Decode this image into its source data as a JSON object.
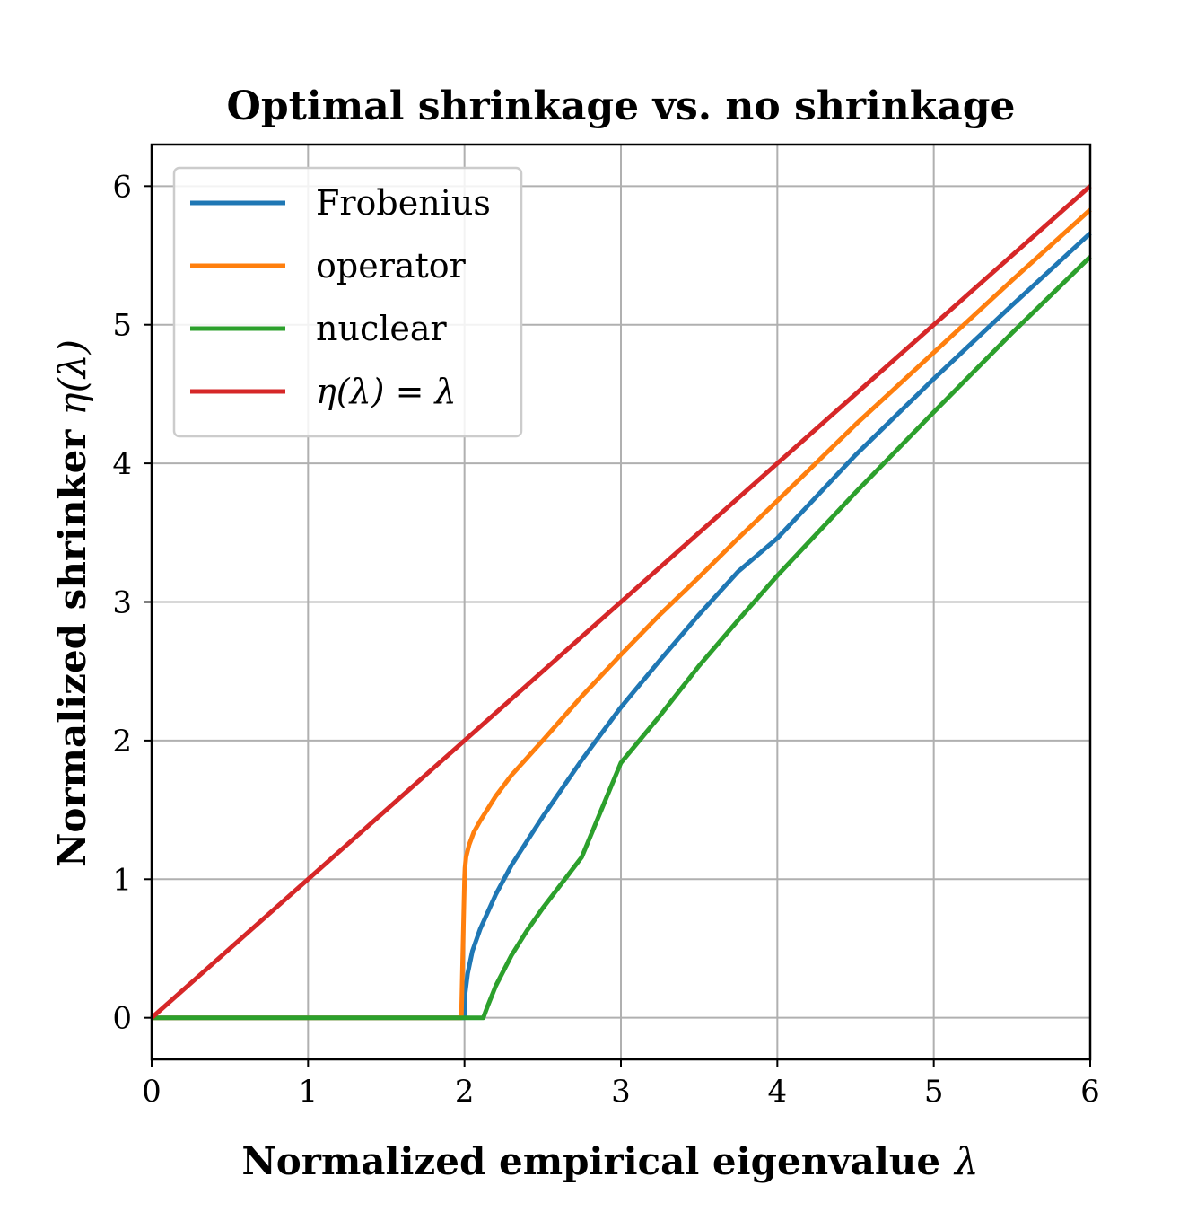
{
  "chart_data": {
    "type": "line",
    "title": "Optimal shrinkage vs. no shrinkage",
    "xlabel": "Normalized empirical eigenvalue",
    "xlabel_symbol": "λ",
    "ylabel": "Normalized shrinker",
    "ylabel_symbol": "η(λ)",
    "xlim": [
      0,
      6
    ],
    "ylim": [
      -0.3,
      6.3
    ],
    "xticks": [
      "0",
      "1",
      "2",
      "3",
      "4",
      "5",
      "6"
    ],
    "yticks": [
      "0",
      "1",
      "2",
      "3",
      "4",
      "5",
      "6"
    ],
    "grid": true,
    "legend_position": "top-left",
    "series": [
      {
        "name": "Frobenius",
        "color": "#1f77b4",
        "x": [
          0,
          2.0,
          2.0,
          2.005,
          2.02,
          2.05,
          2.1,
          2.2,
          2.3,
          2.5,
          2.75,
          3.0,
          3.25,
          3.5,
          3.75,
          4.0,
          4.5,
          5.0,
          5.5,
          6.0
        ],
        "y": [
          0,
          0,
          0.0,
          0.18,
          0.32,
          0.48,
          0.64,
          0.89,
          1.1,
          1.45,
          1.86,
          2.24,
          2.58,
          2.91,
          3.22,
          3.46,
          4.06,
          4.61,
          5.14,
          5.66
        ]
      },
      {
        "name": "operator",
        "color": "#ff7f0e",
        "x": [
          0,
          1.98,
          1.99,
          2.0,
          2.003,
          2.01,
          2.03,
          2.06,
          2.1,
          2.2,
          2.3,
          2.5,
          2.75,
          3.0,
          3.25,
          3.5,
          3.75,
          4.0,
          4.5,
          5.0,
          5.5,
          6.0
        ],
        "y": [
          0,
          0,
          0.5,
          1.0,
          1.08,
          1.16,
          1.25,
          1.34,
          1.42,
          1.6,
          1.75,
          2.0,
          2.32,
          2.62,
          2.91,
          3.18,
          3.46,
          3.73,
          4.28,
          4.8,
          5.32,
          5.83
        ]
      },
      {
        "name": "nuclear",
        "color": "#2ca02c",
        "x": [
          0,
          2.12,
          2.15,
          2.2,
          2.3,
          2.4,
          2.5,
          2.75,
          3.0,
          3.25,
          3.5,
          3.75,
          4.0,
          4.5,
          5.0,
          5.5,
          6.0
        ],
        "y": [
          0,
          0,
          0.09,
          0.23,
          0.45,
          0.63,
          0.79,
          1.16,
          1.84,
          2.18,
          2.54,
          2.87,
          3.19,
          3.79,
          4.37,
          4.94,
          5.49
        ]
      },
      {
        "name": "η(λ) = λ",
        "color": "#d62728",
        "x": [
          0,
          6
        ],
        "y": [
          0,
          6
        ]
      }
    ]
  }
}
